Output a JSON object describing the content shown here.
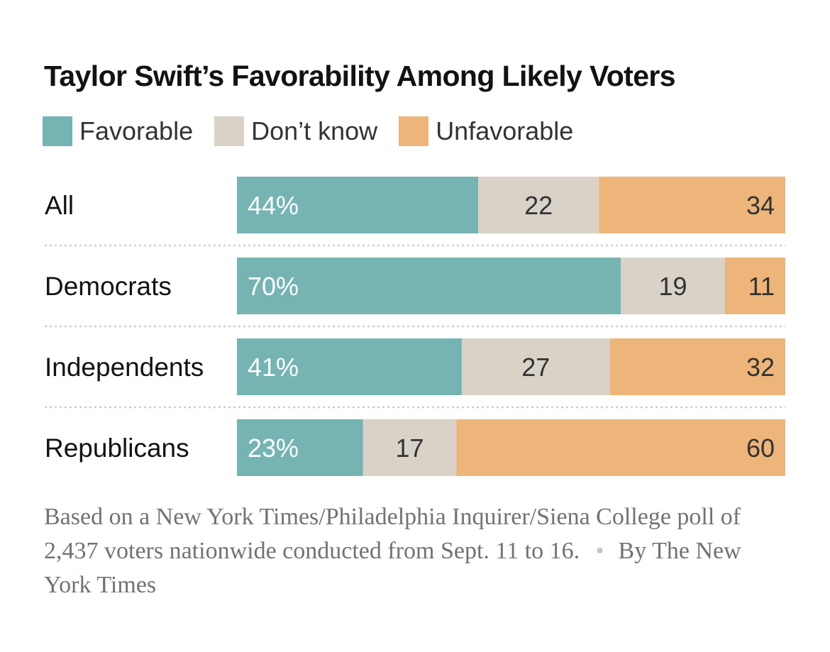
{
  "title": "Taylor Swift’s Favorability Among Likely Voters",
  "legend": [
    {
      "label": "Favorable",
      "color": "#76b3b3"
    },
    {
      "label": "Don’t know",
      "color": "#d9d2c7"
    },
    {
      "label": "Unfavorable",
      "color": "#edb57a"
    }
  ],
  "chart_data": {
    "type": "bar",
    "orientation": "horizontal",
    "stacked": true,
    "title": "Taylor Swift’s Favorability Among Likely Voters",
    "categories": [
      "All",
      "Democrats",
      "Independents",
      "Republicans"
    ],
    "series": [
      {
        "name": "Favorable",
        "color": "#76b3b3",
        "values": [
          44,
          70,
          41,
          23
        ],
        "labels": [
          "44%",
          "70%",
          "41%",
          "23%"
        ]
      },
      {
        "name": "Don’t know",
        "color": "#d9d2c7",
        "values": [
          22,
          19,
          27,
          17
        ],
        "labels": [
          "22",
          "19",
          "27",
          "17"
        ]
      },
      {
        "name": "Unfavorable",
        "color": "#edb57a",
        "values": [
          34,
          11,
          32,
          60
        ],
        "labels": [
          "34",
          "11",
          "32",
          "60"
        ]
      }
    ],
    "xlim": [
      0,
      100
    ],
    "xlabel": "",
    "ylabel": ""
  },
  "note": {
    "text": "Based on a New York Times/Philadelphia Inquirer/Siena College poll of 2,437 voters nationwide conducted from Sept. 11 to 16.",
    "separator": "•",
    "credit": "By The New York Times"
  }
}
